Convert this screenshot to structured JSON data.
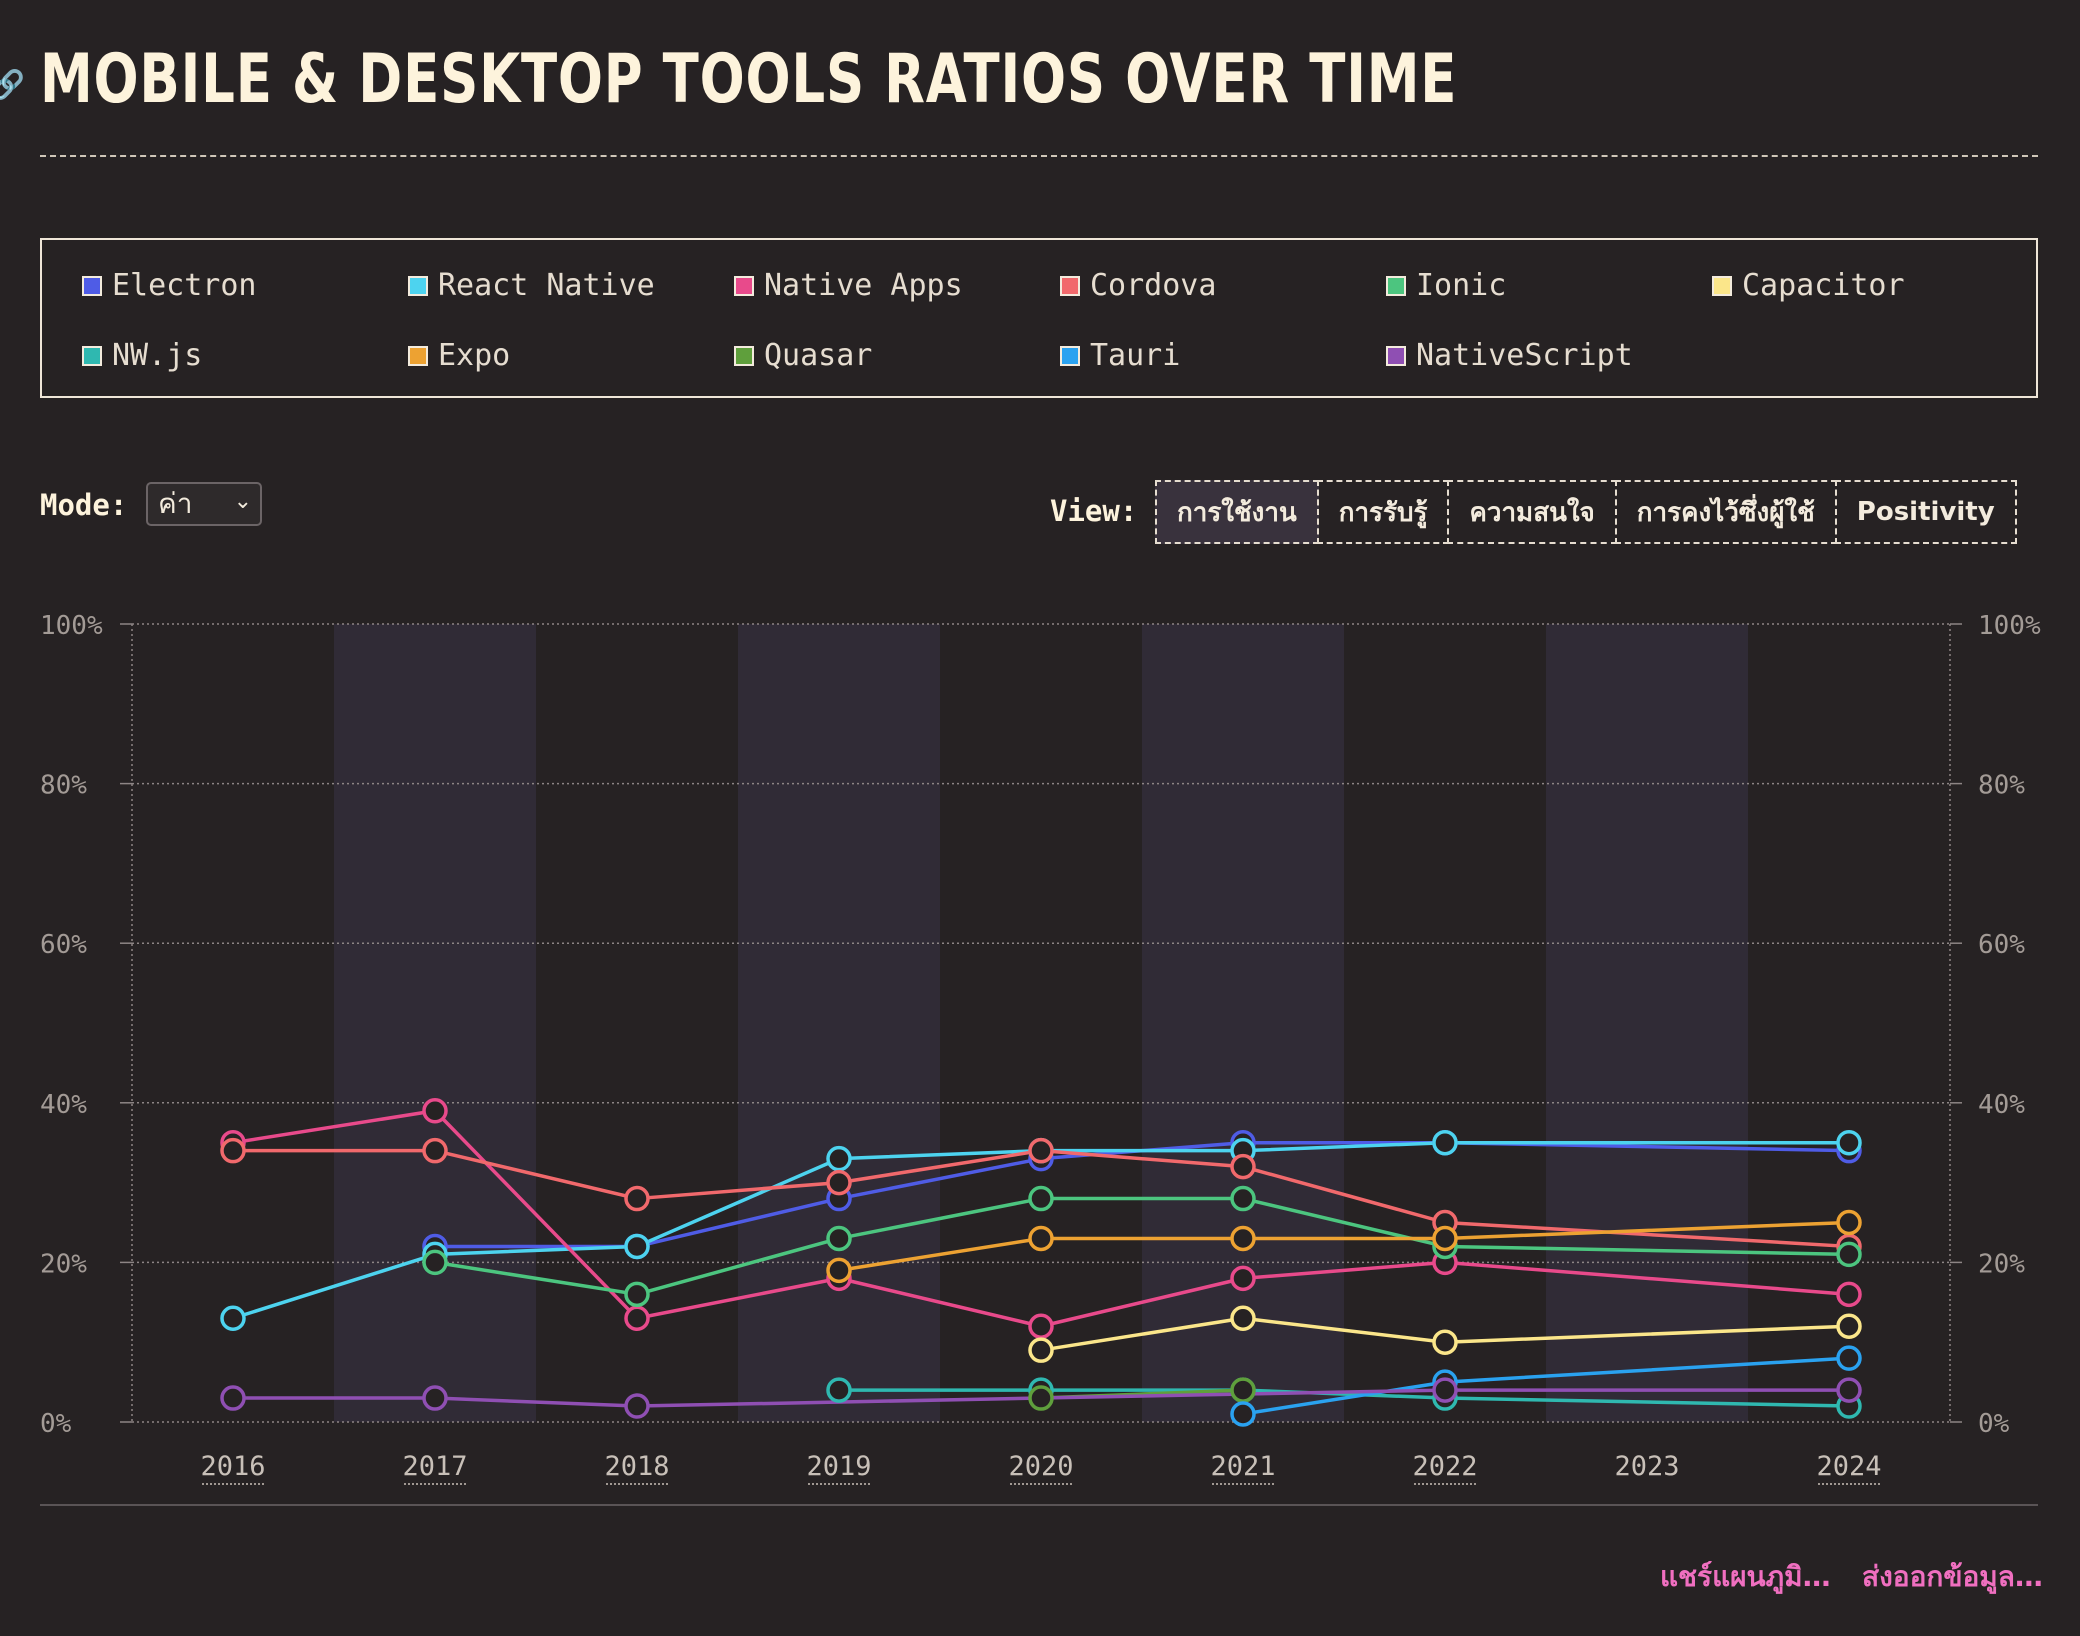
{
  "page": {
    "title": "MOBILE & DESKTOP TOOLS RATIOS OVER TIME",
    "link_icon": "link-icon"
  },
  "legend": [
    {
      "label": "Electron",
      "color": "#4f5ce6"
    },
    {
      "label": "React Native",
      "color": "#4dd3ef"
    },
    {
      "label": "Native Apps",
      "color": "#e84a8b"
    },
    {
      "label": "Cordova",
      "color": "#f1696c"
    },
    {
      "label": "Ionic",
      "color": "#4cc57f"
    },
    {
      "label": "Capacitor",
      "color": "#fbe68a"
    },
    {
      "label": "NW.js",
      "color": "#2fb8b0"
    },
    {
      "label": "Expo",
      "color": "#eda232"
    },
    {
      "label": "Quasar",
      "color": "#5f9f3c"
    },
    {
      "label": "Tauri",
      "color": "#2aa2f0"
    },
    {
      "label": "NativeScript",
      "color": "#8f4fb3"
    }
  ],
  "controls": {
    "mode_label": "Mode:",
    "mode_value": "ค่า",
    "view_label": "View:",
    "view_tabs": [
      "การใช้งาน",
      "การรับรู้",
      "ความสนใจ",
      "การคงไว้ซึ่งผู้ใช้",
      "Positivity"
    ],
    "active_view": 0
  },
  "footer": {
    "share_label": "แชร์แผนภูมิ…",
    "export_label": "ส่งออกข้อมูล…"
  },
  "chart_data": {
    "type": "line",
    "x": [
      "2016",
      "2017",
      "2018",
      "2019",
      "2020",
      "2021",
      "2022",
      "2023",
      "2024"
    ],
    "ylim": [
      0,
      100
    ],
    "y_ticks": [
      "0%",
      "20%",
      "40%",
      "60%",
      "80%",
      "100%"
    ],
    "grid": true,
    "series": [
      {
        "name": "Electron",
        "color": "#4f5ce6",
        "values": [
          null,
          22,
          22,
          28,
          33,
          35,
          35,
          null,
          34
        ]
      },
      {
        "name": "React Native",
        "color": "#4dd3ef",
        "values": [
          13,
          21,
          22,
          33,
          34,
          34,
          35,
          null,
          35
        ]
      },
      {
        "name": "Native Apps",
        "color": "#e84a8b",
        "values": [
          35,
          39,
          13,
          18,
          12,
          18,
          20,
          null,
          16
        ]
      },
      {
        "name": "Cordova",
        "color": "#f1696c",
        "values": [
          34,
          34,
          28,
          30,
          34,
          32,
          25,
          null,
          22
        ]
      },
      {
        "name": "Ionic",
        "color": "#4cc57f",
        "values": [
          null,
          20,
          16,
          23,
          28,
          28,
          22,
          null,
          21
        ]
      },
      {
        "name": "Capacitor",
        "color": "#fbe68a",
        "values": [
          null,
          null,
          null,
          null,
          9,
          13,
          10,
          null,
          12
        ]
      },
      {
        "name": "NW.js",
        "color": "#2fb8b0",
        "values": [
          null,
          null,
          null,
          4,
          4,
          4,
          3,
          null,
          2
        ]
      },
      {
        "name": "Expo",
        "color": "#eda232",
        "values": [
          null,
          null,
          null,
          19,
          23,
          23,
          23,
          null,
          25
        ]
      },
      {
        "name": "Quasar",
        "color": "#5f9f3c",
        "values": [
          null,
          null,
          null,
          null,
          3,
          4,
          null,
          null,
          null
        ]
      },
      {
        "name": "Tauri",
        "color": "#2aa2f0",
        "values": [
          null,
          null,
          null,
          null,
          null,
          1,
          5,
          null,
          8
        ]
      },
      {
        "name": "NativeScript",
        "color": "#8f4fb3",
        "values": [
          3,
          3,
          2,
          null,
          null,
          null,
          4,
          null,
          4
        ]
      }
    ]
  }
}
